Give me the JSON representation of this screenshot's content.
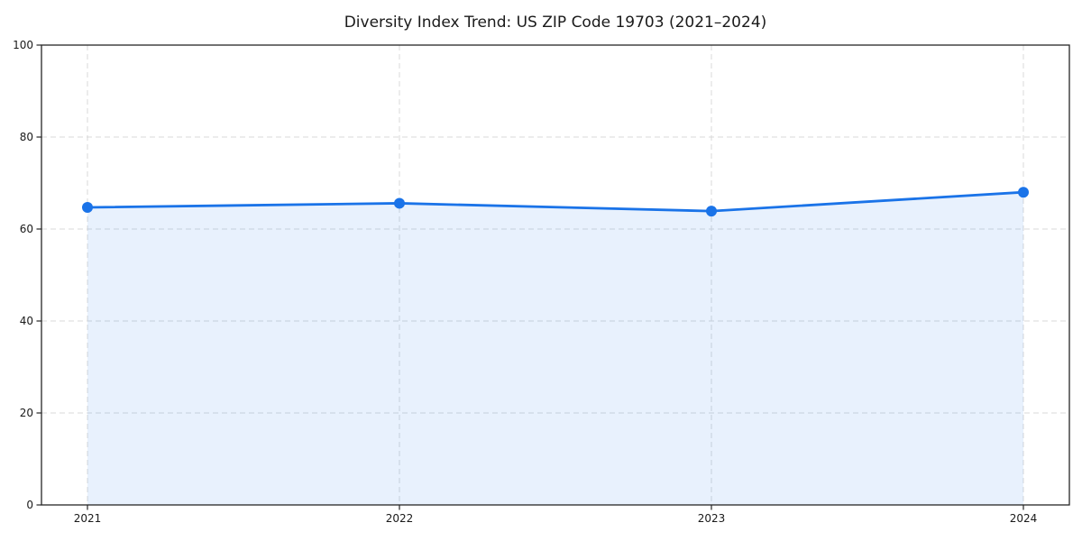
{
  "chart_data": {
    "type": "line",
    "title": "Diversity Index Trend: US ZIP Code 19703 (2021–2024)",
    "x": [
      "2021",
      "2022",
      "2023",
      "2024"
    ],
    "values": [
      64.7,
      65.6,
      63.9,
      68.0
    ],
    "xlabel": "",
    "ylabel": "",
    "ylim": [
      0,
      100
    ],
    "yticks": [
      0,
      20,
      40,
      60,
      80,
      100
    ],
    "grid": {
      "visible": true,
      "style": "dashed"
    },
    "legend": {
      "visible": false
    },
    "area_fill": true,
    "markers": true,
    "colors": {
      "line": "#1a73e8",
      "marker": "#1a73e8",
      "fill": "#1a73e8",
      "fill_opacity": 0.1,
      "grid": "#d9d9d9",
      "axis": "#262626",
      "text": "#1a1a1a",
      "background": "#ffffff"
    }
  }
}
